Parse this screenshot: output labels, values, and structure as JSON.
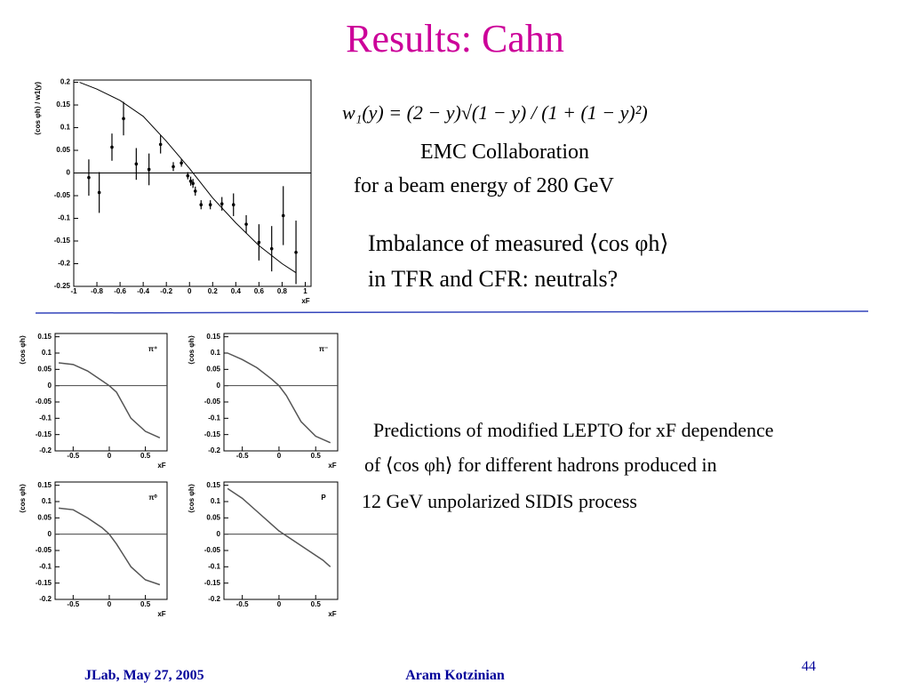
{
  "title": "Results: Cahn",
  "formula": "w₁(y) = (2 − y)√(1 − y) / (1 + (1 − y)²)",
  "emc": [
    "EMC  Collaboration",
    "for  a  beam  energy  of  280  GeV"
  ],
  "note": [
    "Imbalance of measured ⟨cos φh⟩",
    "in TFR and CFR: neutrals?"
  ],
  "prediction": [
    "Predictions of modified LEPTO for xF dependence",
    "of ⟨cos φh⟩ for different hadrons produced in",
    "12 GeV unpolarized SIDIS process"
  ],
  "footer": {
    "left": "JLab, May 27,  2005",
    "center": "Aram Kotzinian",
    "page": "44"
  },
  "chart_data": [
    {
      "type": "scatter",
      "xlabel": "xF",
      "ylabel": "⟨cos φh⟩ / w1(y)",
      "xlim": [
        -1,
        1.05
      ],
      "ylim": [
        -0.25,
        0.205
      ],
      "xticks": [
        -1,
        -0.8,
        -0.6,
        -0.4,
        -0.2,
        0,
        0.2,
        0.4,
        0.6,
        0.8,
        1
      ],
      "yticks": [
        0.2,
        0.15,
        0.1,
        0.05,
        0,
        -0.05,
        -0.1,
        -0.15,
        -0.2,
        -0.25
      ],
      "points": {
        "x": [
          -0.87,
          -0.78,
          -0.67,
          -0.57,
          -0.46,
          -0.35,
          -0.25,
          -0.14,
          -0.07,
          -0.015,
          0.01,
          0.03,
          0.05,
          0.1,
          0.18,
          0.28,
          0.38,
          0.49,
          0.6,
          0.71,
          0.81,
          0.92
        ],
        "values": [
          -0.01,
          -0.043,
          0.057,
          0.12,
          0.02,
          0.008,
          0.063,
          0.014,
          0.022,
          -0.006,
          -0.018,
          -0.023,
          -0.04,
          -0.07,
          -0.07,
          -0.068,
          -0.07,
          -0.113,
          -0.153,
          -0.167,
          -0.094,
          -0.175
        ],
        "errors": [
          0.04,
          0.045,
          0.03,
          0.037,
          0.035,
          0.035,
          0.02,
          0.01,
          0.008,
          0.008,
          0.01,
          0.01,
          0.01,
          0.01,
          0.01,
          0.015,
          0.025,
          0.02,
          0.04,
          0.05,
          0.065,
          0.07
        ]
      },
      "curve": {
        "x": [
          -0.95,
          -0.8,
          -0.6,
          -0.4,
          -0.2,
          0,
          0.2,
          0.4,
          0.6,
          0.8,
          0.92
        ],
        "values": [
          0.2,
          0.185,
          0.16,
          0.125,
          0.07,
          0.01,
          -0.055,
          -0.11,
          -0.16,
          -0.2,
          -0.22
        ]
      }
    },
    {
      "type": "line",
      "label": "π⁺",
      "xlabel": "xF",
      "ylabel": "⟨cos φh⟩",
      "xlim": [
        -0.75,
        0.8
      ],
      "ylim": [
        -0.2,
        0.16
      ],
      "xticks": [
        -0.5,
        0,
        0.5
      ],
      "yticks": [
        0.15,
        0.1,
        0.05,
        0,
        -0.05,
        -0.1,
        -0.15,
        -0.2
      ],
      "curve": {
        "x": [
          -0.7,
          -0.5,
          -0.3,
          -0.1,
          0,
          0.1,
          0.2,
          0.3,
          0.5,
          0.7
        ],
        "values": [
          0.07,
          0.065,
          0.045,
          0.015,
          0,
          -0.02,
          -0.06,
          -0.1,
          -0.14,
          -0.16
        ]
      }
    },
    {
      "type": "line",
      "label": "π⁻",
      "xlabel": "xF",
      "ylabel": "⟨cos φh⟩",
      "xlim": [
        -0.75,
        0.8
      ],
      "ylim": [
        -0.2,
        0.16
      ],
      "xticks": [
        -0.5,
        0,
        0.5
      ],
      "yticks": [
        0.15,
        0.1,
        0.05,
        0,
        -0.05,
        -0.1,
        -0.15,
        -0.2
      ],
      "curve": {
        "x": [
          -0.7,
          -0.5,
          -0.3,
          -0.1,
          0,
          0.1,
          0.2,
          0.3,
          0.5,
          0.7
        ],
        "values": [
          0.1,
          0.08,
          0.055,
          0.02,
          0,
          -0.03,
          -0.07,
          -0.11,
          -0.155,
          -0.175
        ]
      }
    },
    {
      "type": "line",
      "label": "π⁰",
      "xlabel": "xF",
      "ylabel": "⟨cos φh⟩",
      "xlim": [
        -0.75,
        0.8
      ],
      "ylim": [
        -0.2,
        0.16
      ],
      "xticks": [
        -0.5,
        0,
        0.5
      ],
      "yticks": [
        0.15,
        0.1,
        0.05,
        0,
        -0.05,
        -0.1,
        -0.15,
        -0.2
      ],
      "curve": {
        "x": [
          -0.7,
          -0.5,
          -0.3,
          -0.1,
          0,
          0.1,
          0.2,
          0.3,
          0.5,
          0.7
        ],
        "values": [
          0.08,
          0.075,
          0.05,
          0.02,
          0,
          -0.03,
          -0.065,
          -0.1,
          -0.14,
          -0.155
        ]
      }
    },
    {
      "type": "line",
      "label": "P",
      "xlabel": "xF",
      "ylabel": "⟨cos φh⟩",
      "xlim": [
        -0.75,
        0.8
      ],
      "ylim": [
        -0.2,
        0.16
      ],
      "xticks": [
        -0.5,
        0,
        0.5
      ],
      "yticks": [
        0.15,
        0.1,
        0.05,
        0,
        -0.05,
        -0.1,
        -0.15,
        -0.2
      ],
      "curve": {
        "x": [
          -0.7,
          -0.5,
          -0.3,
          -0.1,
          0,
          0.1,
          0.2,
          0.4,
          0.6,
          0.7
        ],
        "values": [
          0.14,
          0.11,
          0.07,
          0.03,
          0.01,
          -0.005,
          -0.02,
          -0.05,
          -0.08,
          -0.1
        ]
      }
    }
  ]
}
